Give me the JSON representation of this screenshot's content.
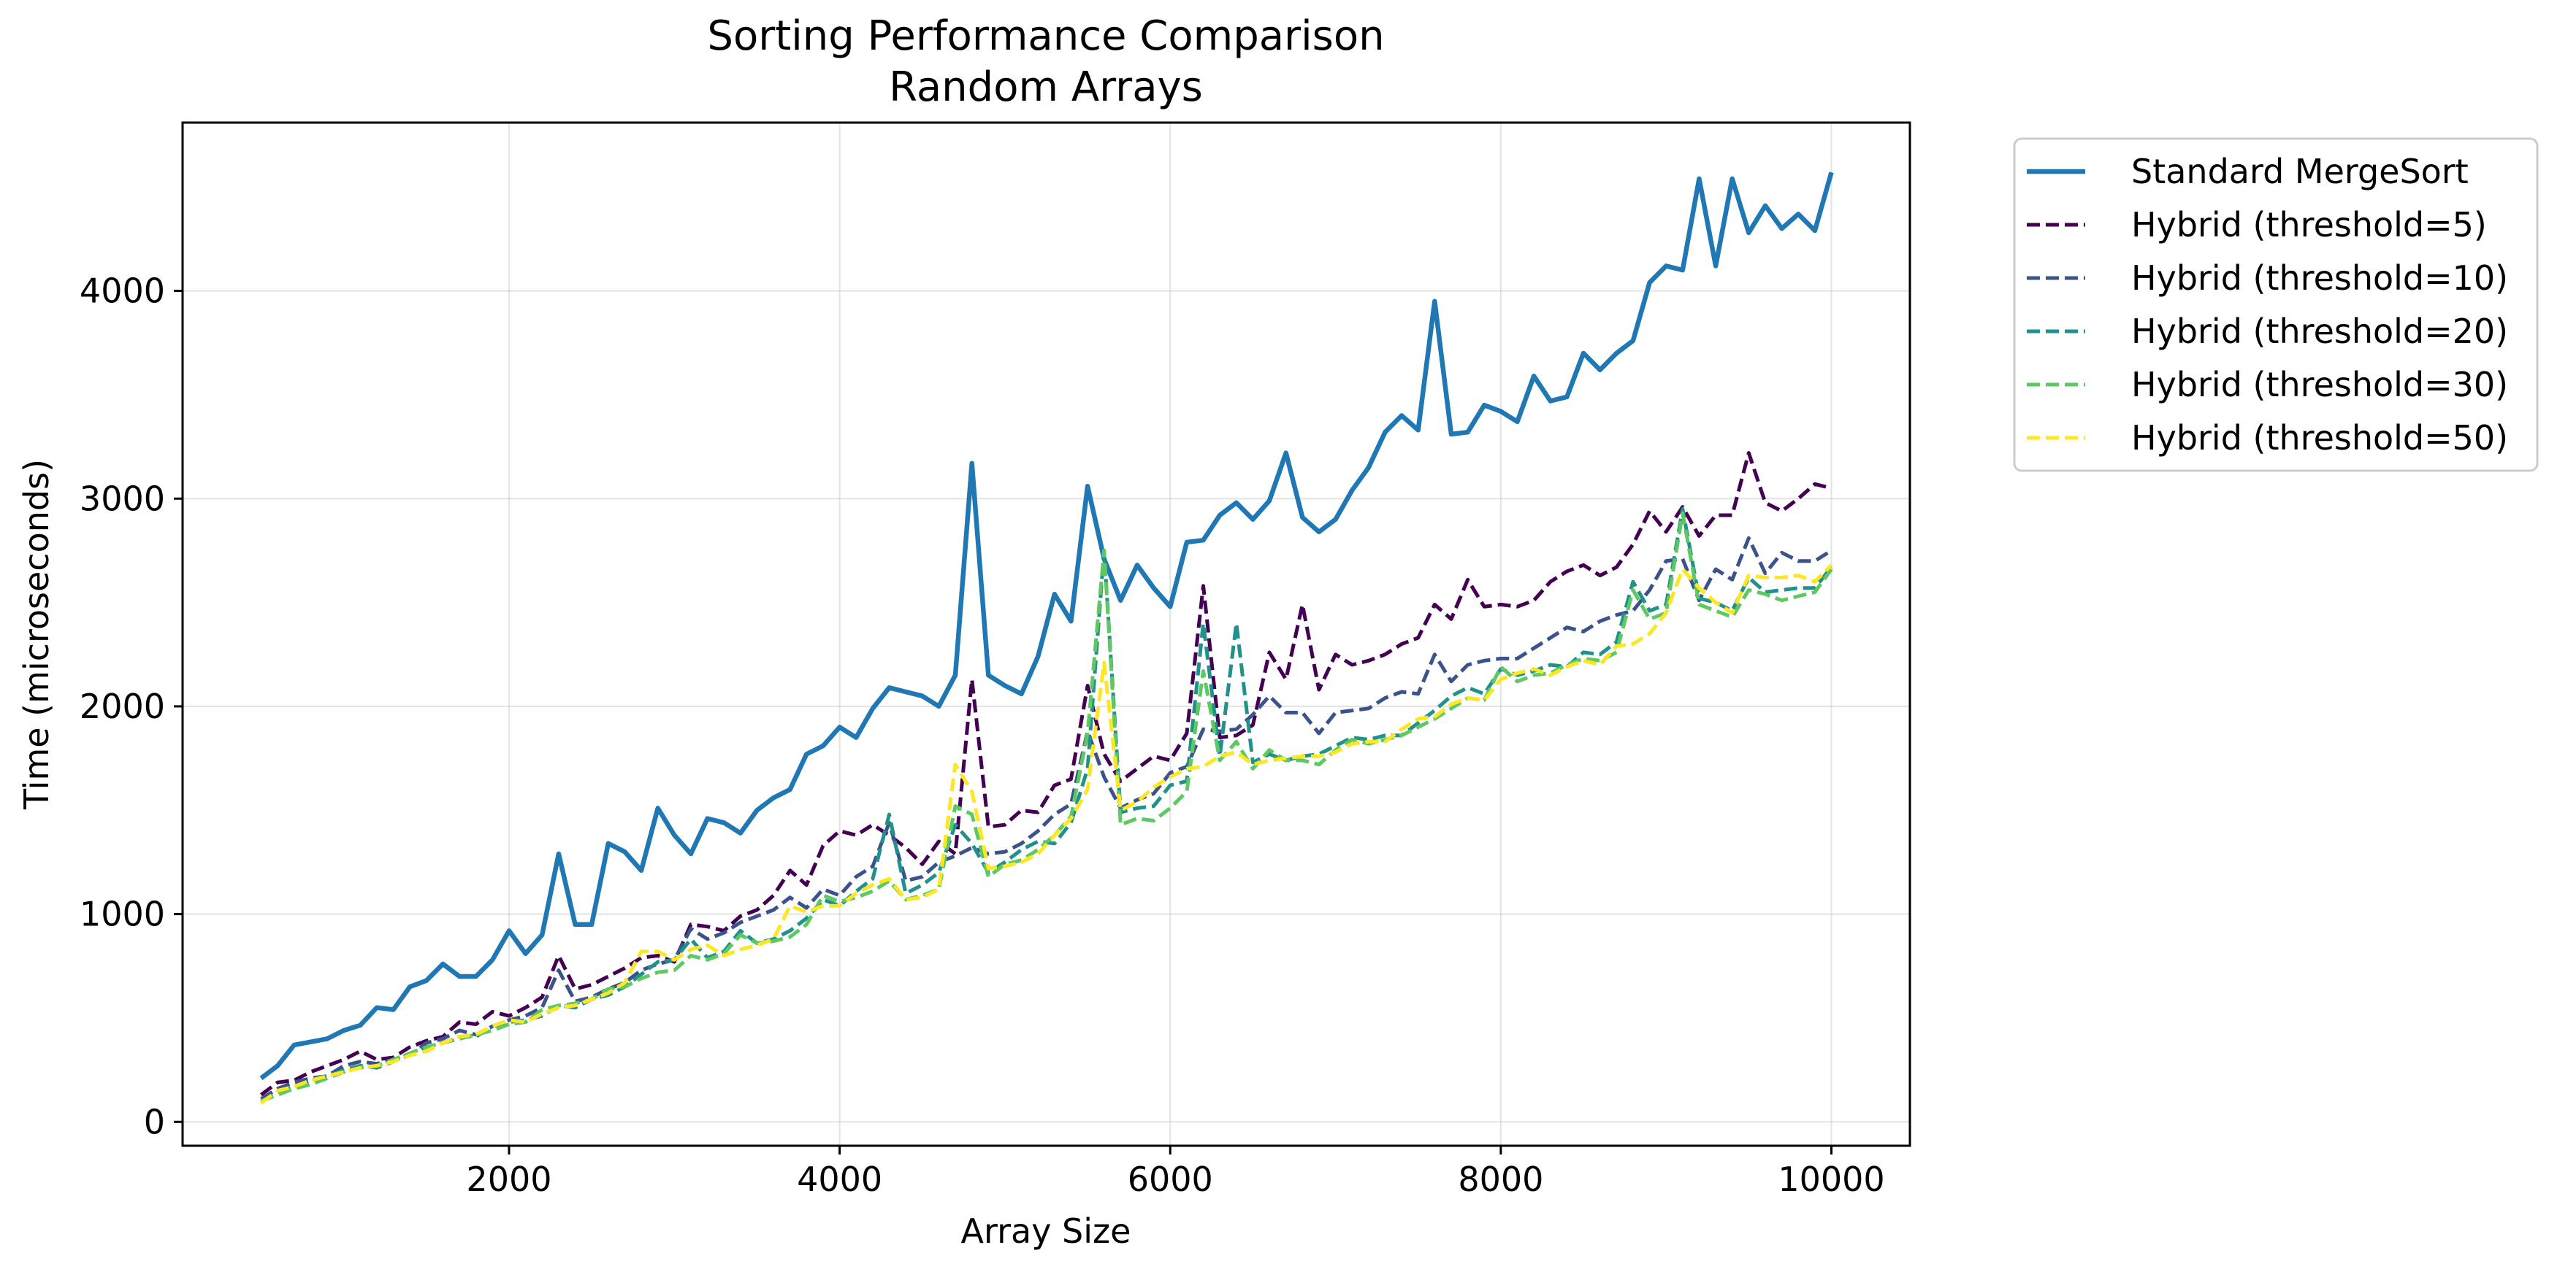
{
  "chart_data": {
    "type": "line",
    "title": "Sorting Performance Comparison",
    "subtitle": "Random Arrays",
    "xlabel": "Array Size",
    "ylabel": "Time (microseconds)",
    "xlim": [
      25,
      10475
    ],
    "ylim": [
      -115,
      4810
    ],
    "xticks": [
      2000,
      4000,
      6000,
      8000,
      10000
    ],
    "yticks": [
      0,
      1000,
      2000,
      3000,
      4000
    ],
    "grid": true,
    "legend_position": "outside-top-right",
    "x": [
      500,
      600,
      700,
      800,
      900,
      1000,
      1100,
      1200,
      1300,
      1400,
      1500,
      1600,
      1700,
      1800,
      1900,
      2000,
      2100,
      2200,
      2300,
      2400,
      2500,
      2600,
      2700,
      2800,
      2900,
      3000,
      3100,
      3200,
      3300,
      3400,
      3500,
      3600,
      3700,
      3800,
      3900,
      4000,
      4100,
      4200,
      4300,
      4400,
      4500,
      4600,
      4700,
      4800,
      4900,
      5000,
      5100,
      5200,
      5300,
      5400,
      5500,
      5600,
      5700,
      5800,
      5900,
      6000,
      6100,
      6200,
      6300,
      6400,
      6500,
      6600,
      6700,
      6800,
      6900,
      7000,
      7100,
      7200,
      7300,
      7400,
      7500,
      7600,
      7700,
      7800,
      7900,
      8000,
      8100,
      8200,
      8300,
      8400,
      8500,
      8600,
      8700,
      8800,
      8900,
      9000,
      9100,
      9200,
      9300,
      9400,
      9500,
      9600,
      9700,
      9800,
      9900,
      10000
    ],
    "series": [
      {
        "name": "Standard MergeSort",
        "color": "#1f77b4",
        "style": "solid",
        "values": [
          210,
          270,
          370,
          385,
          400,
          440,
          465,
          550,
          540,
          650,
          680,
          760,
          700,
          700,
          780,
          920,
          810,
          900,
          1290,
          950,
          950,
          1340,
          1300,
          1210,
          1510,
          1380,
          1290,
          1460,
          1440,
          1390,
          1500,
          1560,
          1600,
          1770,
          1810,
          1900,
          1850,
          1990,
          2090,
          2070,
          2050,
          2000,
          2150,
          3170,
          2150,
          2100,
          2060,
          2240,
          2540,
          2410,
          3060,
          2710,
          2510,
          2680,
          2570,
          2480,
          2790,
          2800,
          2920,
          2980,
          2900,
          2990,
          3220,
          2910,
          2840,
          2900,
          3040,
          3150,
          3320,
          3400,
          3330,
          3950,
          3310,
          3320,
          3450,
          3420,
          3370,
          3590,
          3470,
          3490,
          3700,
          3620,
          3700,
          3760,
          4040,
          4120,
          4100,
          4540,
          4120,
          4540,
          4280,
          4410,
          4300,
          4370,
          4290,
          4570
        ]
      },
      {
        "name": "Hybrid (threshold=5)",
        "color": "#440154",
        "style": "dashed",
        "values": [
          130,
          190,
          200,
          240,
          270,
          300,
          340,
          300,
          310,
          360,
          390,
          410,
          480,
          470,
          530,
          510,
          550,
          600,
          800,
          640,
          660,
          700,
          740,
          790,
          800,
          770,
          950,
          940,
          920,
          990,
          1020,
          1090,
          1210,
          1140,
          1330,
          1400,
          1380,
          1430,
          1380,
          1320,
          1240,
          1350,
          1290,
          2130,
          1420,
          1430,
          1500,
          1490,
          1620,
          1650,
          2100,
          1770,
          1640,
          1700,
          1760,
          1740,
          1870,
          2580,
          1850,
          1860,
          1910,
          2260,
          2130,
          2490,
          2080,
          2250,
          2200,
          2220,
          2250,
          2300,
          2330,
          2490,
          2420,
          2610,
          2480,
          2490,
          2480,
          2510,
          2600,
          2650,
          2680,
          2630,
          2670,
          2780,
          2940,
          2840,
          2960,
          2820,
          2920,
          2920,
          3220,
          2980,
          2940,
          3000,
          3070,
          3050
        ]
      },
      {
        "name": "Hybrid (threshold=10)",
        "color": "#3b528b",
        "style": "dashed",
        "values": [
          110,
          160,
          190,
          210,
          220,
          270,
          290,
          280,
          300,
          320,
          380,
          400,
          440,
          420,
          460,
          490,
          510,
          550,
          730,
          580,
          600,
          640,
          670,
          730,
          760,
          780,
          930,
          880,
          910,
          960,
          990,
          1020,
          1080,
          1030,
          1120,
          1090,
          1180,
          1230,
          1440,
          1160,
          1180,
          1250,
          1280,
          1320,
          1290,
          1300,
          1340,
          1400,
          1480,
          1530,
          1880,
          1660,
          1510,
          1550,
          1580,
          1680,
          1710,
          1890,
          1880,
          1890,
          1960,
          2050,
          1970,
          1970,
          1870,
          1970,
          1980,
          1990,
          2040,
          2070,
          2060,
          2250,
          2120,
          2200,
          2220,
          2230,
          2230,
          2280,
          2330,
          2380,
          2360,
          2410,
          2440,
          2460,
          2560,
          2700,
          2710,
          2510,
          2660,
          2610,
          2810,
          2640,
          2740,
          2700,
          2700,
          2750
        ]
      },
      {
        "name": "Hybrid (threshold=20)",
        "color": "#21918c",
        "style": "dashed",
        "values": [
          100,
          140,
          170,
          200,
          220,
          250,
          270,
          260,
          290,
          330,
          360,
          380,
          410,
          410,
          460,
          480,
          490,
          510,
          560,
          550,
          590,
          610,
          650,
          710,
          770,
          780,
          880,
          790,
          820,
          920,
          860,
          880,
          920,
          980,
          1070,
          1040,
          1110,
          1170,
          1480,
          1100,
          1140,
          1200,
          1430,
          1340,
          1200,
          1250,
          1310,
          1350,
          1340,
          1440,
          1700,
          2750,
          1490,
          1510,
          1520,
          1620,
          1640,
          2400,
          1760,
          2400,
          1730,
          1770,
          1740,
          1760,
          1770,
          1810,
          1850,
          1840,
          1860,
          1860,
          1920,
          1980,
          2050,
          2090,
          2060,
          2180,
          2150,
          2170,
          2200,
          2190,
          2260,
          2250,
          2310,
          2600,
          2460,
          2490,
          2950,
          2520,
          2500,
          2460,
          2620,
          2550,
          2560,
          2570,
          2570,
          2670
        ]
      },
      {
        "name": "Hybrid (threshold=30)",
        "color": "#5ec962",
        "style": "dashed",
        "values": [
          100,
          130,
          160,
          180,
          210,
          240,
          260,
          270,
          300,
          330,
          360,
          380,
          400,
          420,
          440,
          470,
          480,
          540,
          560,
          570,
          590,
          640,
          650,
          690,
          720,
          730,
          800,
          780,
          810,
          900,
          860,
          870,
          890,
          950,
          1090,
          1060,
          1080,
          1110,
          1160,
          1070,
          1090,
          1120,
          1520,
          1480,
          1180,
          1240,
          1260,
          1310,
          1380,
          1470,
          1870,
          2750,
          1430,
          1460,
          1450,
          1510,
          1590,
          2170,
          1740,
          1830,
          1700,
          1790,
          1740,
          1740,
          1720,
          1790,
          1840,
          1820,
          1840,
          1860,
          1900,
          1940,
          1990,
          2040,
          2030,
          2190,
          2120,
          2150,
          2160,
          2200,
          2230,
          2220,
          2260,
          2560,
          2420,
          2450,
          2930,
          2490,
          2460,
          2430,
          2560,
          2540,
          2510,
          2530,
          2550,
          2660
        ]
      },
      {
        "name": "Hybrid (threshold=50)",
        "color": "#fde725",
        "style": "dashed",
        "values": [
          90,
          150,
          170,
          200,
          220,
          240,
          260,
          270,
          290,
          320,
          340,
          380,
          410,
          420,
          460,
          490,
          480,
          520,
          550,
          560,
          590,
          620,
          670,
          820,
          820,
          780,
          830,
          850,
          800,
          830,
          850,
          880,
          1040,
          1010,
          1040,
          1040,
          1100,
          1140,
          1170,
          1070,
          1080,
          1120,
          1720,
          1590,
          1220,
          1230,
          1250,
          1290,
          1380,
          1460,
          1600,
          2210,
          1500,
          1540,
          1610,
          1660,
          1700,
          1710,
          1760,
          1780,
          1720,
          1740,
          1750,
          1760,
          1760,
          1780,
          1820,
          1830,
          1830,
          1890,
          1940,
          1950,
          2010,
          2040,
          2030,
          2130,
          2160,
          2180,
          2150,
          2190,
          2220,
          2200,
          2290,
          2300,
          2350,
          2450,
          2660,
          2570,
          2500,
          2450,
          2630,
          2620,
          2620,
          2630,
          2600,
          2680
        ]
      }
    ]
  }
}
